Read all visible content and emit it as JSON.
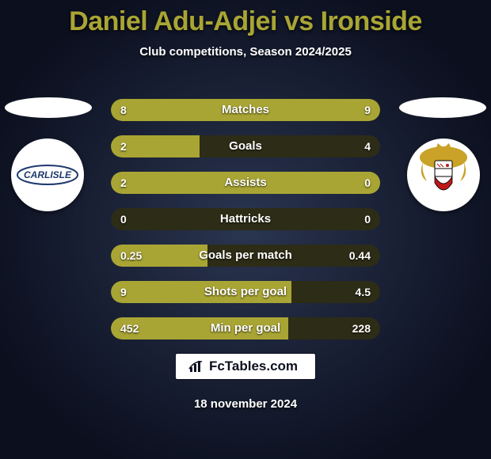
{
  "title_color": "#a9a534",
  "title": "Daniel Adu-Adjei vs Ironside",
  "subtitle": "Club competitions, Season 2024/2025",
  "pill_color_left": "#ffffff",
  "pill_color_right": "#ffffff",
  "crest_left_bg": "#ffffff",
  "crest_right_bg": "#ffffff",
  "crest_left_text": "CARLISLE",
  "crest_left_text_color": "#1e3a6e",
  "bar_base_color": "#2d2c16",
  "bar_fill_color": "#a9a534",
  "bar_text_color": "#ffffff",
  "bars": [
    {
      "name": "Matches",
      "left_label": "8",
      "right_label": "9",
      "left_pct": 47,
      "right_pct": 53
    },
    {
      "name": "Goals",
      "left_label": "2",
      "right_label": "4",
      "left_pct": 33,
      "right_pct": 0
    },
    {
      "name": "Assists",
      "left_label": "2",
      "right_label": "0",
      "left_pct": 100,
      "right_pct": 0
    },
    {
      "name": "Hattricks",
      "left_label": "0",
      "right_label": "0",
      "left_pct": 0,
      "right_pct": 0
    },
    {
      "name": "Goals per match",
      "left_label": "0.25",
      "right_label": "0.44",
      "left_pct": 36,
      "right_pct": 0
    },
    {
      "name": "Shots per goal",
      "left_label": "9",
      "right_label": "4.5",
      "left_pct": 67,
      "right_pct": 0
    },
    {
      "name": "Min per goal",
      "left_label": "452",
      "right_label": "228",
      "left_pct": 66,
      "right_pct": 0
    }
  ],
  "footer_brand": "FcTables.com",
  "footer_date": "18 november 2024"
}
